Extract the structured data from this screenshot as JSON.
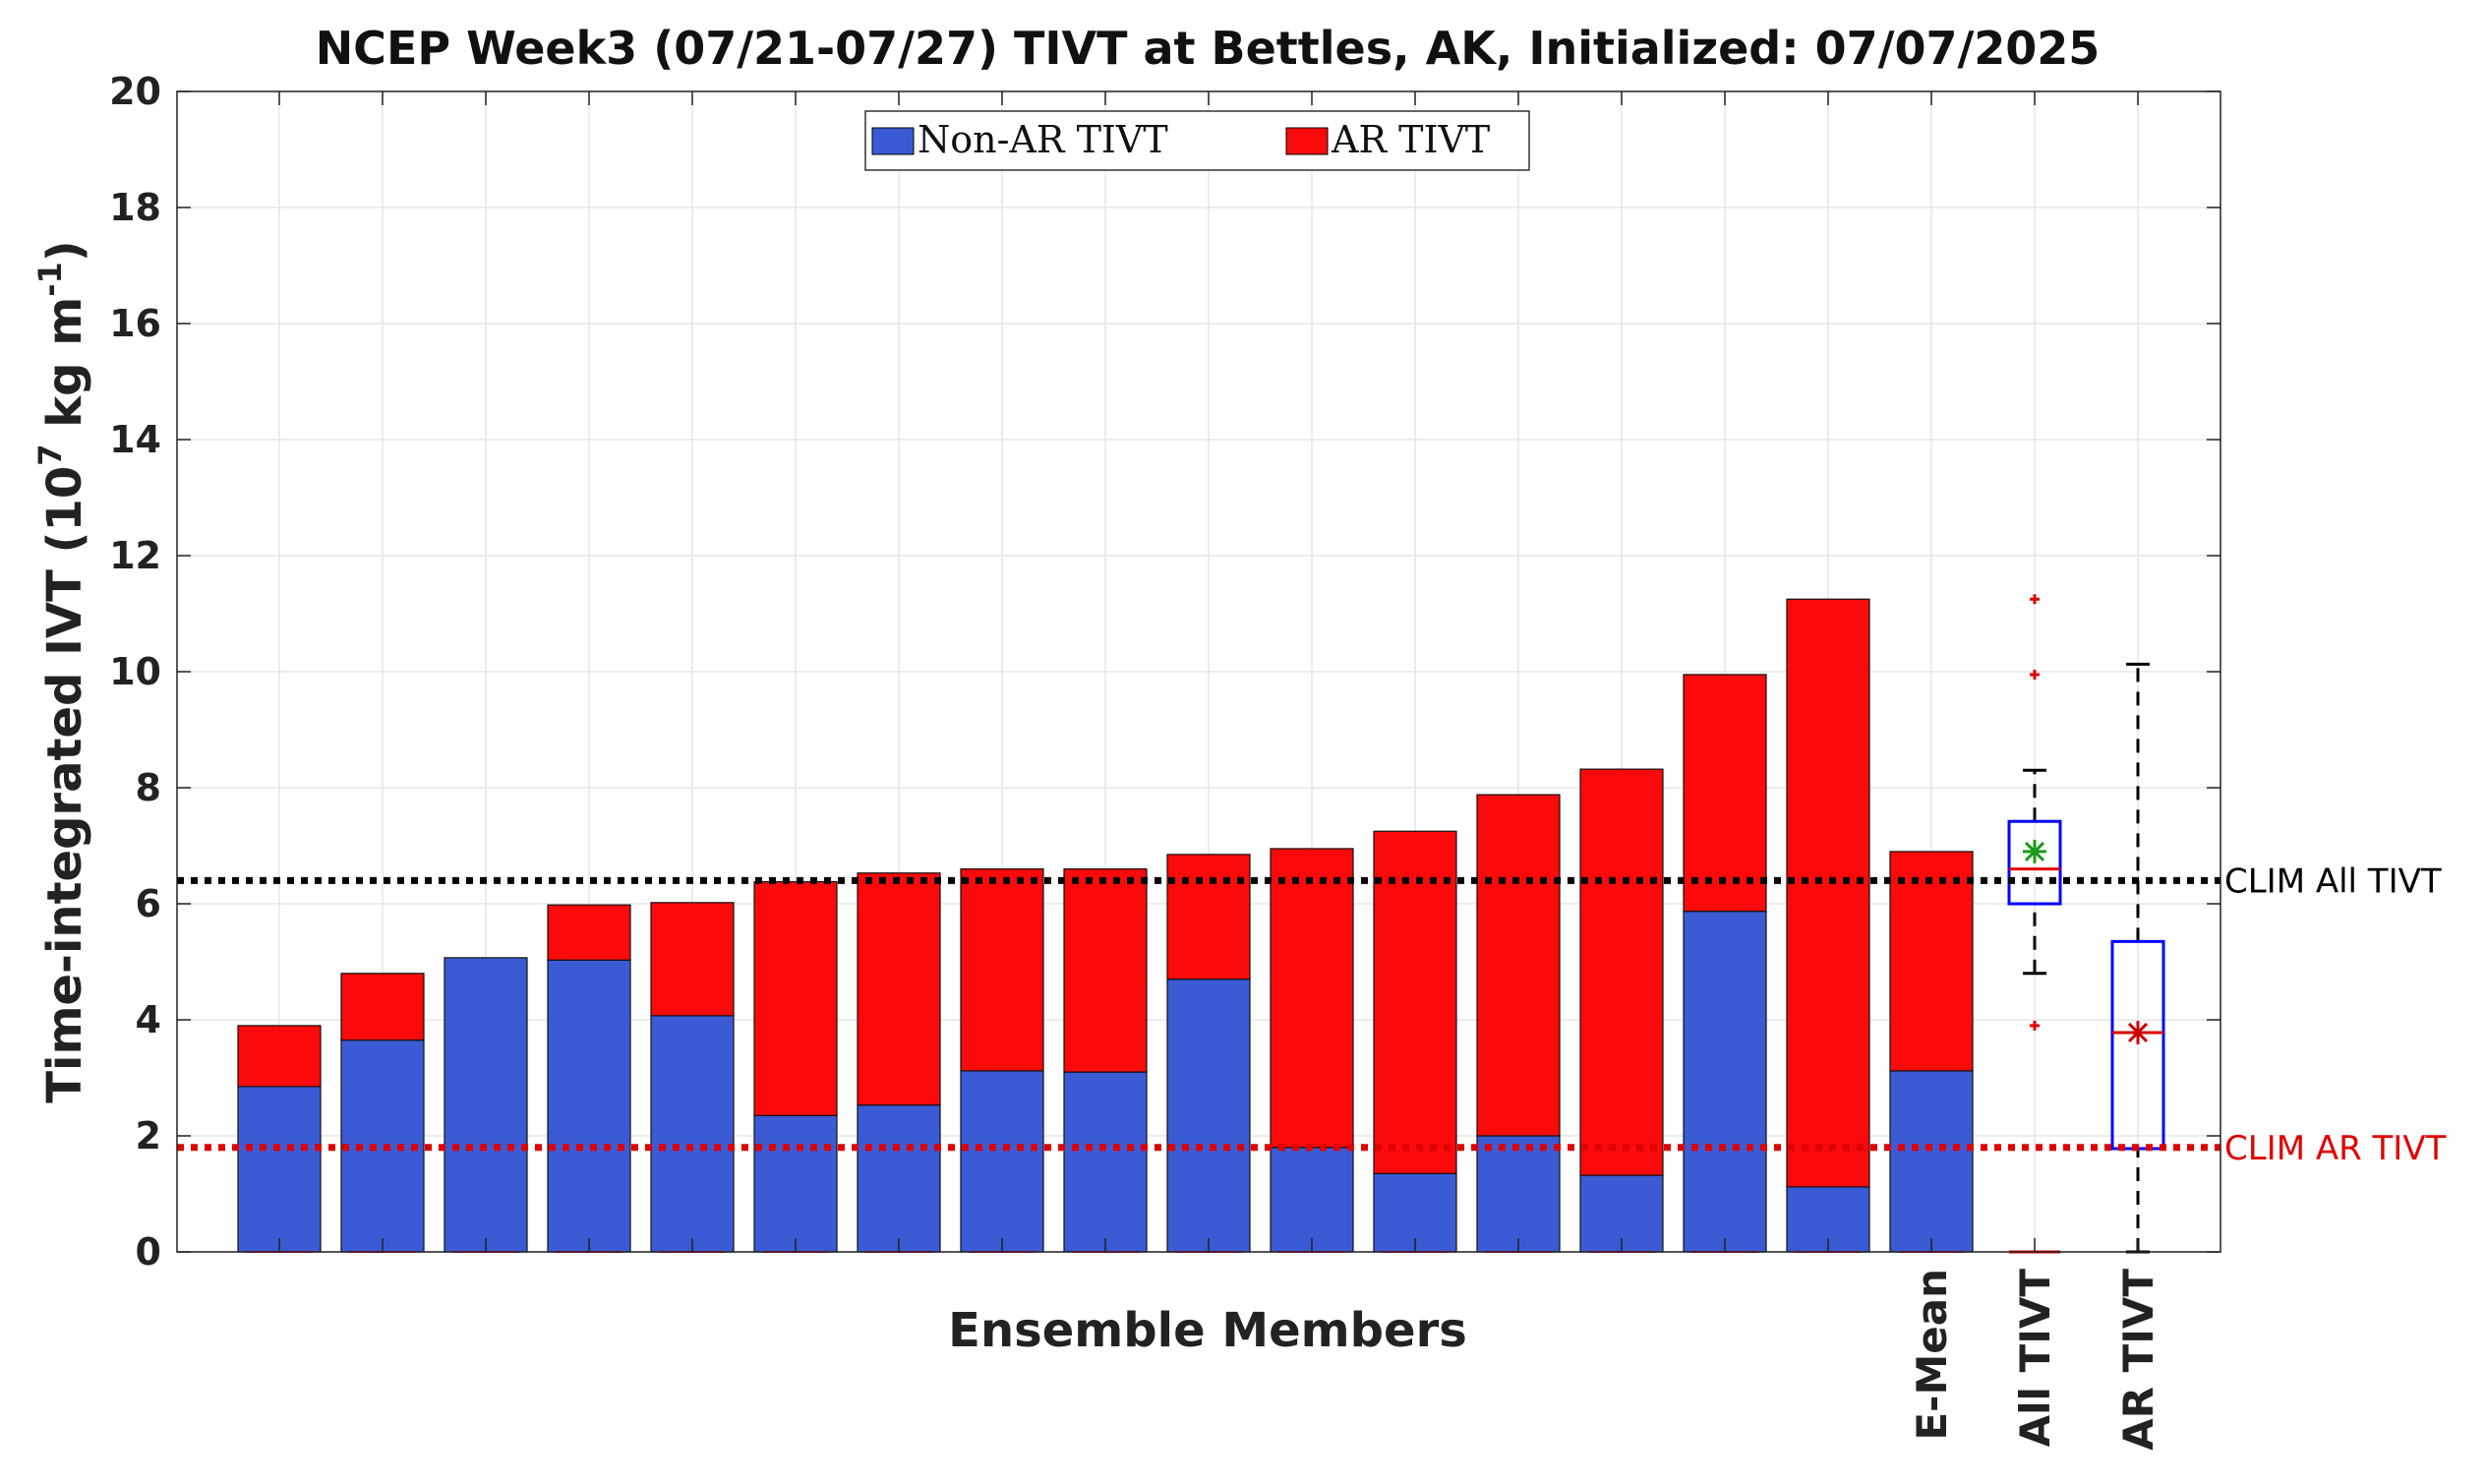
{
  "chart_data": {
    "type": "bar",
    "title": "NCEP Week3 (07/21-07/27) TIVT at Bettles, AK, Initialized: 07/07/2025",
    "xlabel": "Ensemble Members",
    "ylabel_main": "Time-integrated IVT (10",
    "ylabel_exp": "7",
    "ylabel_mid": " kg m",
    "ylabel_exp2": "-1",
    "ylabel_end": ")",
    "ylim": [
      0,
      20
    ],
    "yticks": [
      "0",
      "2",
      "4",
      "6",
      "8",
      "10",
      "12",
      "14",
      "16",
      "18",
      "20"
    ],
    "categories": [
      "",
      "",
      "",
      "",
      "",
      "",
      "",
      "",
      "",
      "",
      "",
      "",
      "",
      "",
      "",
      "",
      "E-Mean"
    ],
    "series": [
      {
        "name": "Non-AR TIVT",
        "color": "#3b5bd5",
        "values": [
          2.85,
          3.65,
          5.07,
          5.03,
          4.07,
          2.35,
          2.53,
          3.12,
          3.1,
          4.7,
          1.8,
          1.35,
          2.0,
          1.32,
          5.87,
          1.12,
          3.12
        ]
      },
      {
        "name": "AR TIVT",
        "color": "#fa0a0a",
        "values": [
          1.05,
          1.15,
          0.0,
          0.95,
          1.95,
          4.03,
          4.0,
          3.48,
          3.5,
          2.15,
          5.15,
          5.9,
          5.88,
          7.0,
          4.08,
          10.13,
          3.78
        ]
      }
    ],
    "boxplots": [
      {
        "label": "All TIVT",
        "box_color": "#0000ff",
        "whisker_low": 4.8,
        "q1": 6.0,
        "median": 6.6,
        "q3": 7.42,
        "whisker_high": 8.3,
        "mean": 6.9,
        "mean_color": "#1a9a1a",
        "outliers": [
          3.9,
          9.95,
          11.25
        ]
      },
      {
        "label": "AR TIVT",
        "box_color": "#0000ff",
        "whisker_low": 0.0,
        "q1": 1.78,
        "median": 3.78,
        "q3": 5.35,
        "whisker_high": 10.13,
        "mean": 3.78,
        "mean_color": "#cc0000",
        "outliers": []
      }
    ],
    "reference_lines": [
      {
        "label": "CLIM All TIVT",
        "value": 6.4,
        "color": "#000000"
      },
      {
        "label": "CLIM AR TIVT",
        "value": 1.8,
        "color": "#e00000"
      }
    ],
    "legend_position": "top-center",
    "grid": true
  }
}
